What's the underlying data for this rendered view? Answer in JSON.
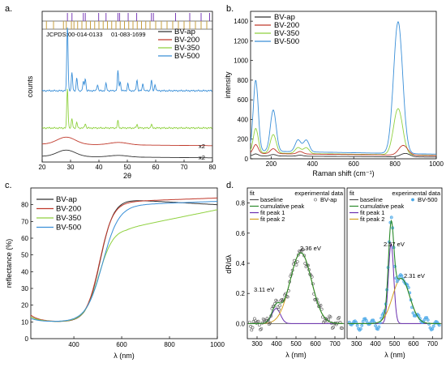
{
  "panels": [
    "a.",
    "b.",
    "c.",
    "d."
  ],
  "colors": {
    "BV-ap": "#333333",
    "BV-200": "#c0392b",
    "BV-350": "#8fd13f",
    "BV-500": "#3a8fd8",
    "purple": "#7b3fb8",
    "gold": "#c8a040",
    "fitpeak1": "#6a2fb0",
    "fitpeak2": "#d4a020",
    "baseline": "#555555",
    "cumulative": "#2a8a2a"
  },
  "chart_data": [
    {
      "type": "line",
      "panel": "a.",
      "xlabel": "2θ",
      "ylabel": "counts",
      "xlim": [
        20,
        80
      ],
      "xticks": [
        "20",
        "30",
        "40",
        "50",
        "60",
        "70",
        "80"
      ],
      "jcpds": {
        "label": "JCPDS:",
        "ref1": "00-014-0133",
        "ref2": "01-083-1699"
      },
      "scale_labels": [
        "x2",
        "x2"
      ],
      "legend": [
        "BV-ap",
        "BV-200",
        "BV-350",
        "BV-500"
      ],
      "series": [
        {
          "name": "BV-500",
          "peaks": [
            [
              28.9,
              75
            ],
            [
              30.5,
              20
            ],
            [
              32.2,
              14
            ],
            [
              34.5,
              10
            ],
            [
              35.2,
              14
            ],
            [
              39.5,
              7
            ],
            [
              42.5,
              8
            ],
            [
              46.7,
              22
            ],
            [
              47.5,
              10
            ],
            [
              50.2,
              8
            ],
            [
              53.4,
              12
            ],
            [
              55.5,
              8
            ],
            [
              58.5,
              12
            ],
            [
              59.8,
              7
            ]
          ]
        },
        {
          "name": "BV-350",
          "peaks": [
            [
              28.9,
              45
            ],
            [
              30.5,
              10
            ],
            [
              32.2,
              6
            ],
            [
              35.2,
              5
            ],
            [
              46.7,
              8
            ],
            [
              53.4,
              4
            ],
            [
              58.5,
              4
            ]
          ]
        },
        {
          "name": "BV-200",
          "peaks": [
            [
              28.5,
              9
            ],
            [
              47.0,
              3
            ]
          ]
        },
        {
          "name": "BV-ap",
          "peaks": [
            [
              28.5,
              8
            ],
            [
              47.0,
              2
            ]
          ]
        }
      ]
    },
    {
      "type": "line",
      "panel": "b.",
      "xlabel": "Raman shift (cm⁻¹)",
      "ylabel": "intensity",
      "xlim": [
        100,
        1000
      ],
      "ylim": [
        0,
        1500
      ],
      "xticks": [
        "200",
        "400",
        "600",
        "800",
        "1000"
      ],
      "yticks": [
        "0",
        "200",
        "400",
        "600",
        "800",
        "1000",
        "1200",
        "1400"
      ],
      "legend": [
        "BV-ap",
        "BV-200",
        "BV-350",
        "BV-500"
      ],
      "series": [
        {
          "name": "BV-500",
          "base": 80,
          "peaks": [
            [
              125,
              720
            ],
            [
              210,
              420
            ],
            [
              330,
              120
            ],
            [
              370,
              120
            ],
            [
              815,
              1340
            ]
          ]
        },
        {
          "name": "BV-350",
          "base": 60,
          "peaks": [
            [
              125,
              250
            ],
            [
              210,
              190
            ],
            [
              330,
              60
            ],
            [
              370,
              60
            ],
            [
              815,
              470
            ]
          ]
        },
        {
          "name": "BV-200",
          "base": 55,
          "peaks": [
            [
              125,
              90
            ],
            [
              210,
              50
            ],
            [
              340,
              25
            ],
            [
              840,
              100
            ]
          ]
        },
        {
          "name": "BV-ap",
          "base": 30,
          "peaks": [
            [
              125,
              20
            ],
            [
              210,
              15
            ],
            [
              340,
              10
            ],
            [
              850,
              35
            ]
          ]
        }
      ]
    },
    {
      "type": "line",
      "panel": "c.",
      "xlabel": "λ (nm)",
      "ylabel": "reflectance (%)",
      "xlim": [
        220,
        1000
      ],
      "ylim": [
        0,
        90
      ],
      "xticks": [
        "400",
        "600",
        "800",
        "1000"
      ],
      "yticks": [
        "0",
        "10",
        "20",
        "30",
        "40",
        "50",
        "60",
        "70",
        "80"
      ],
      "legend": [
        "BV-ap",
        "BV-200",
        "BV-350",
        "BV-500"
      ],
      "series": [
        {
          "name": "BV-ap",
          "start": 13,
          "low": 10,
          "edge": 510,
          "width": 28,
          "high": 83,
          "end": 80
        },
        {
          "name": "BV-200",
          "start": 14,
          "low": 10,
          "edge": 508,
          "width": 28,
          "high": 82,
          "end": 84
        },
        {
          "name": "BV-350",
          "start": 13,
          "low": 10,
          "edge": 505,
          "width": 30,
          "high": 66,
          "end": 77
        },
        {
          "name": "BV-500",
          "start": 12,
          "low": 10,
          "edge": 520,
          "width": 34,
          "high": 80,
          "end": 82
        }
      ]
    },
    {
      "type": "line",
      "panel": "d.",
      "ylabel": "dR/dλ",
      "xlabel": "λ (nm)",
      "ylim": [
        -0.1,
        0.9
      ],
      "yticks": [
        "0.0",
        "0.2",
        "0.4",
        "0.6",
        "0.8"
      ],
      "left": {
        "xlim": [
          250,
          750
        ],
        "xticks": [
          "300",
          "400",
          "500",
          "600",
          "700"
        ],
        "legend_fit": [
          "fit",
          "baseline",
          "cumulative peak",
          "fit peak 1",
          "fit peak 2"
        ],
        "legend_exp": [
          "experimental data",
          "BV-ap"
        ],
        "annotations": [
          "3.11 eV",
          "2.36 eV"
        ],
        "peaks": [
          [
            398,
            0.1,
            22
          ],
          [
            525,
            0.47,
            55
          ]
        ]
      },
      "right": {
        "xlim": [
          250,
          750
        ],
        "xticks": [
          "300",
          "400",
          "500",
          "600",
          "700"
        ],
        "legend_fit": [
          "fit",
          "baseline",
          "cumulative peak",
          "fit peak 1",
          "fit peak 2"
        ],
        "legend_exp": [
          "experimental data",
          "BV-500"
        ],
        "annotations": [
          "2.57 eV",
          "2.31 eV"
        ],
        "peaks": [
          [
            482,
            0.53,
            14
          ],
          [
            535,
            0.3,
            45
          ]
        ]
      }
    }
  ]
}
